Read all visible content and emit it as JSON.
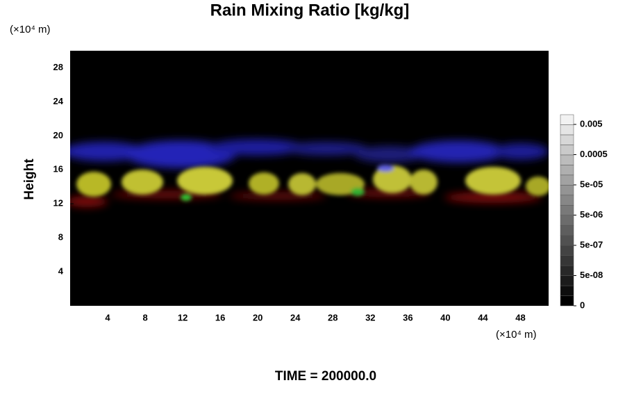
{
  "chart_data": {
    "type": "image",
    "title": "Rain Mixing Ratio [kg/kg]",
    "y_unit": "(×10⁴ m)",
    "x_unit": "(×10⁴ m)",
    "ylabel": "Height",
    "xlim": [
      0,
      51
    ],
    "ylim": [
      0,
      30
    ],
    "xticks": [
      4,
      8,
      12,
      16,
      20,
      24,
      28,
      32,
      36,
      40,
      44,
      48
    ],
    "yticks": [
      4,
      8,
      12,
      16,
      20,
      24,
      28
    ],
    "colorbar_ticks": [
      {
        "value": 0.005,
        "label": "0.005"
      },
      {
        "value": 0.0005,
        "label": "0.0005"
      },
      {
        "value": 5e-05,
        "label": "5e-05"
      },
      {
        "value": 5e-06,
        "label": "5e-06"
      },
      {
        "value": 5e-07,
        "label": "5e-07"
      },
      {
        "value": 5e-08,
        "label": "5e-08"
      },
      0
    ],
    "footer": "TIME = 200000.0"
  }
}
